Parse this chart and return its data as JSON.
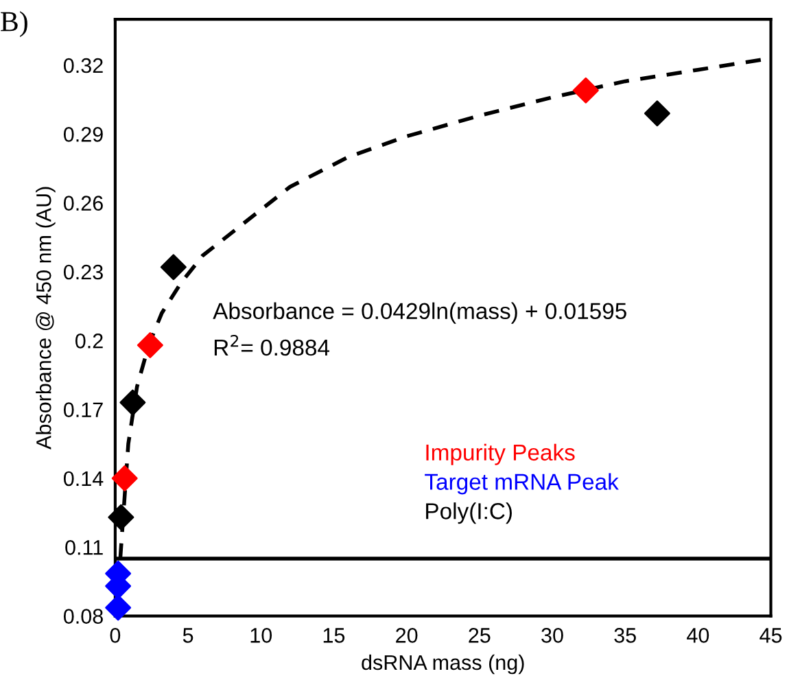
{
  "chart_data": {
    "type": "scatter",
    "xlabel": "dsRNA mass (ng)",
    "ylabel": "Absorbance @ 450 nm (AU)",
    "xlim": [
      0,
      45
    ],
    "xticks": [
      0,
      5,
      10,
      15,
      20,
      25,
      30,
      35,
      40,
      45
    ],
    "ylim": [
      0.08,
      0.34
    ],
    "yticks": [
      0.08,
      0.11,
      0.14,
      0.17,
      0.2,
      0.23,
      0.26,
      0.29,
      0.32
    ],
    "grid": false,
    "legend": "bottom right",
    "marker": "diamond",
    "ref_lines": [
      {
        "axis": "y",
        "value": 0.105,
        "color": "#000000",
        "line_style": "solid"
      }
    ],
    "annotations": [
      "B)",
      "Absorbance = 0.0429ln(mass) + 0.01595",
      "R$^{2}$= 0.9884"
    ],
    "series": [
      {
        "type": "line",
        "color": "#000000",
        "line_style": "dashed",
        "marker": "none",
        "x": [
          0.35,
          0.9,
          1.5,
          2.3,
          3.2,
          4.5,
          6,
          8,
          12,
          16,
          20,
          25,
          30,
          35,
          40,
          45
        ],
        "values": [
          0.105,
          0.155,
          0.18,
          0.198,
          0.212,
          0.225,
          0.237,
          0.247,
          0.267,
          0.28,
          0.289,
          0.298,
          0.306,
          0.313,
          0.318,
          0.323
        ]
      },
      {
        "name": "Impurity Peaks",
        "color": "#ff0000",
        "x": [
          0.65,
          2.4,
          32.3
        ],
        "values": [
          0.14,
          0.198,
          0.309
        ]
      },
      {
        "name": "Target mRNA Peak",
        "color": "#0000ff",
        "x": [
          0.2,
          0.2,
          0.2
        ],
        "values": [
          0.0985,
          0.093,
          0.0836
        ]
      },
      {
        "name": "Poly(I:C)",
        "color": "#000000",
        "x": [
          0.4,
          1.2,
          4.0,
          37.2
        ],
        "values": [
          0.123,
          0.173,
          0.232,
          0.299
        ]
      }
    ]
  }
}
